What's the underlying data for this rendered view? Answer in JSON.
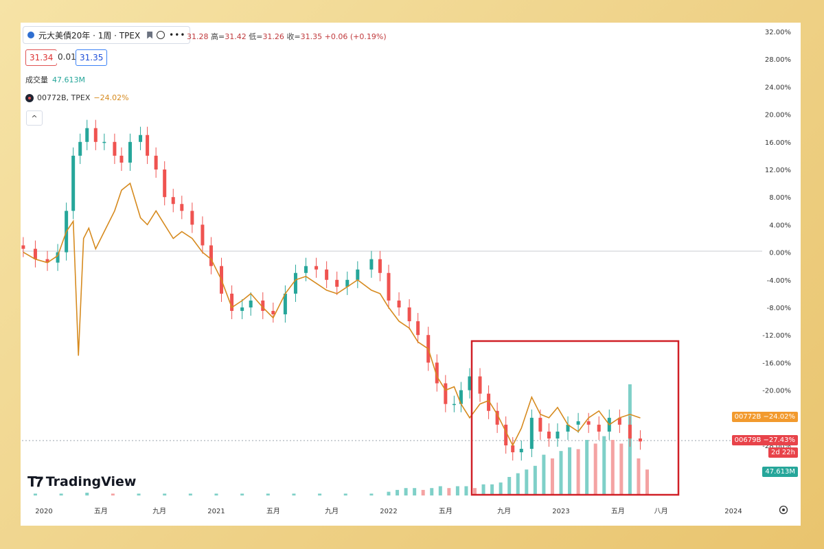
{
  "header": {
    "symbol": "元大美債20年 · 1周 · TPEX",
    "ohlc": [
      {
        "k": "",
        "v": "31.28"
      },
      {
        "k": "高=",
        "v": "31.42"
      },
      {
        "k": "低=",
        "v": "31.26"
      },
      {
        "k": "收=",
        "v": "31.35"
      },
      {
        "k": "",
        "v": "+0.06 (+0.19%)"
      }
    ],
    "bid": "31.34",
    "spread": "0.01",
    "ask": "31.35",
    "volume_label": "成交量",
    "volume_value": "47.613M",
    "compare_symbol": "00772B, TPEX",
    "compare_value": "−24.02%"
  },
  "brand": "TradingView",
  "tags": {
    "compare": "00772B  −24.02%",
    "main": "00679B  −27.43%",
    "countdown": "2d 22h",
    "volume": "47.613M"
  },
  "colors": {
    "up": "#26a69a",
    "down": "#ef5350",
    "compare_line": "#d68a1e",
    "highlight": "#d01f26"
  },
  "chart_data": {
    "type": "line",
    "y_unit": "%",
    "ylim": [
      -32,
      32
    ],
    "yticks": [
      "32.00%",
      "28.00%",
      "24.00%",
      "20.00%",
      "16.00%",
      "12.00%",
      "8.00%",
      "4.00%",
      "0.00%",
      "-4.00%",
      "-8.00%",
      "-12.00%",
      "-16.00%",
      "-20.00%",
      "-24.00%",
      "-28.00%"
    ],
    "xticks": [
      {
        "label": "2020",
        "t": 2020.0
      },
      {
        "label": "五月",
        "t": 2020.33
      },
      {
        "label": "九月",
        "t": 2020.67
      },
      {
        "label": "2021",
        "t": 2021.0
      },
      {
        "label": "五月",
        "t": 2021.33
      },
      {
        "label": "九月",
        "t": 2021.67
      },
      {
        "label": "2022",
        "t": 2022.0
      },
      {
        "label": "五月",
        "t": 2022.33
      },
      {
        "label": "九月",
        "t": 2022.67
      },
      {
        "label": "2023",
        "t": 2023.0
      },
      {
        "label": "五月",
        "t": 2023.33
      },
      {
        "label": "八月",
        "t": 2023.58
      },
      {
        "label": "2024",
        "t": 2024.0
      }
    ],
    "grid": false,
    "series": [
      {
        "name": "00679B",
        "kind": "candles",
        "points": [
          [
            2019.88,
            0.5
          ],
          [
            2019.95,
            -1
          ],
          [
            2020.02,
            -1.5
          ],
          [
            2020.08,
            0
          ],
          [
            2020.13,
            6
          ],
          [
            2020.17,
            14
          ],
          [
            2020.21,
            16
          ],
          [
            2020.25,
            18
          ],
          [
            2020.3,
            16
          ],
          [
            2020.35,
            16
          ],
          [
            2020.41,
            14
          ],
          [
            2020.45,
            13
          ],
          [
            2020.5,
            16
          ],
          [
            2020.56,
            17
          ],
          [
            2020.6,
            14
          ],
          [
            2020.65,
            12
          ],
          [
            2020.7,
            8
          ],
          [
            2020.75,
            7
          ],
          [
            2020.8,
            6
          ],
          [
            2020.86,
            4
          ],
          [
            2020.92,
            1
          ],
          [
            2020.97,
            -2
          ],
          [
            2021.03,
            -6
          ],
          [
            2021.09,
            -8.5
          ],
          [
            2021.15,
            -8
          ],
          [
            2021.2,
            -7
          ],
          [
            2021.27,
            -8.5
          ],
          [
            2021.33,
            -9
          ],
          [
            2021.4,
            -6
          ],
          [
            2021.46,
            -3
          ],
          [
            2021.52,
            -2
          ],
          [
            2021.58,
            -2.5
          ],
          [
            2021.64,
            -4
          ],
          [
            2021.7,
            -5
          ],
          [
            2021.76,
            -4
          ],
          [
            2021.82,
            -2.5
          ],
          [
            2021.9,
            -1
          ],
          [
            2021.95,
            -3
          ],
          [
            2022.0,
            -7
          ],
          [
            2022.06,
            -8
          ],
          [
            2022.12,
            -10
          ],
          [
            2022.17,
            -12
          ],
          [
            2022.23,
            -16
          ],
          [
            2022.28,
            -19
          ],
          [
            2022.33,
            -22
          ],
          [
            2022.38,
            -22
          ],
          [
            2022.42,
            -20
          ],
          [
            2022.47,
            -18
          ],
          [
            2022.53,
            -20.5
          ],
          [
            2022.58,
            -23
          ],
          [
            2022.63,
            -25
          ],
          [
            2022.68,
            -28
          ],
          [
            2022.72,
            -29
          ],
          [
            2022.77,
            -28.5
          ],
          [
            2022.83,
            -24
          ],
          [
            2022.88,
            -26
          ],
          [
            2022.93,
            -27
          ],
          [
            2022.98,
            -26
          ],
          [
            2023.04,
            -25
          ],
          [
            2023.1,
            -24.5
          ],
          [
            2023.16,
            -25
          ],
          [
            2023.22,
            -26
          ],
          [
            2023.28,
            -24
          ],
          [
            2023.34,
            -25
          ],
          [
            2023.4,
            -27
          ],
          [
            2023.46,
            -27.43
          ]
        ]
      },
      {
        "name": "00772B",
        "kind": "line",
        "points": [
          [
            2019.88,
            0
          ],
          [
            2019.95,
            -1
          ],
          [
            2020.02,
            -1.5
          ],
          [
            2020.08,
            -0.5
          ],
          [
            2020.13,
            3
          ],
          [
            2020.17,
            4.5
          ],
          [
            2020.2,
            -15
          ],
          [
            2020.23,
            2
          ],
          [
            2020.26,
            3.5
          ],
          [
            2020.3,
            0.5
          ],
          [
            2020.35,
            3
          ],
          [
            2020.41,
            6
          ],
          [
            2020.45,
            9
          ],
          [
            2020.5,
            10
          ],
          [
            2020.56,
            5
          ],
          [
            2020.6,
            4
          ],
          [
            2020.65,
            6
          ],
          [
            2020.7,
            4
          ],
          [
            2020.75,
            2
          ],
          [
            2020.8,
            3
          ],
          [
            2020.86,
            2
          ],
          [
            2020.92,
            0
          ],
          [
            2020.97,
            -1
          ],
          [
            2021.03,
            -4
          ],
          [
            2021.09,
            -8
          ],
          [
            2021.15,
            -7
          ],
          [
            2021.2,
            -6
          ],
          [
            2021.27,
            -8
          ],
          [
            2021.33,
            -9.5
          ],
          [
            2021.4,
            -6
          ],
          [
            2021.46,
            -4
          ],
          [
            2021.52,
            -3.5
          ],
          [
            2021.58,
            -4.5
          ],
          [
            2021.64,
            -5.5
          ],
          [
            2021.7,
            -6
          ],
          [
            2021.76,
            -5
          ],
          [
            2021.82,
            -4
          ],
          [
            2021.9,
            -5.5
          ],
          [
            2021.95,
            -6
          ],
          [
            2022.0,
            -8
          ],
          [
            2022.06,
            -10
          ],
          [
            2022.12,
            -11
          ],
          [
            2022.17,
            -13
          ],
          [
            2022.23,
            -14
          ],
          [
            2022.28,
            -18
          ],
          [
            2022.33,
            -20
          ],
          [
            2022.38,
            -19.5
          ],
          [
            2022.42,
            -22
          ],
          [
            2022.47,
            -24
          ],
          [
            2022.53,
            -22
          ],
          [
            2022.58,
            -21.5
          ],
          [
            2022.63,
            -23.5
          ],
          [
            2022.68,
            -26
          ],
          [
            2022.72,
            -28
          ],
          [
            2022.77,
            -25.5
          ],
          [
            2022.83,
            -21
          ],
          [
            2022.88,
            -23.5
          ],
          [
            2022.93,
            -24
          ],
          [
            2022.98,
            -22.5
          ],
          [
            2023.04,
            -25
          ],
          [
            2023.1,
            -26
          ],
          [
            2023.16,
            -24
          ],
          [
            2023.22,
            -23
          ],
          [
            2023.28,
            -25
          ],
          [
            2023.34,
            -24
          ],
          [
            2023.4,
            -23.5
          ],
          [
            2023.46,
            -24.02
          ]
        ]
      }
    ],
    "volume": {
      "last": "47.613M",
      "points": [
        [
          2019.95,
          1
        ],
        [
          2020.1,
          1
        ],
        [
          2020.25,
          1.5
        ],
        [
          2020.4,
          1
        ],
        [
          2020.55,
          1
        ],
        [
          2020.7,
          1
        ],
        [
          2020.85,
          1
        ],
        [
          2021.0,
          1
        ],
        [
          2021.15,
          1
        ],
        [
          2021.3,
          1
        ],
        [
          2021.45,
          1
        ],
        [
          2021.6,
          1
        ],
        [
          2021.75,
          1
        ],
        [
          2021.9,
          1
        ],
        [
          2022.0,
          2
        ],
        [
          2022.05,
          3
        ],
        [
          2022.1,
          4
        ],
        [
          2022.15,
          4
        ],
        [
          2022.2,
          3
        ],
        [
          2022.25,
          4
        ],
        [
          2022.3,
          5
        ],
        [
          2022.35,
          4
        ],
        [
          2022.4,
          5
        ],
        [
          2022.45,
          5
        ],
        [
          2022.5,
          4
        ],
        [
          2022.55,
          6
        ],
        [
          2022.6,
          6
        ],
        [
          2022.65,
          7
        ],
        [
          2022.7,
          10
        ],
        [
          2022.75,
          12
        ],
        [
          2022.8,
          14
        ],
        [
          2022.85,
          16
        ],
        [
          2022.9,
          22
        ],
        [
          2022.95,
          20
        ],
        [
          2023.0,
          24
        ],
        [
          2023.05,
          26
        ],
        [
          2023.1,
          25
        ],
        [
          2023.15,
          30
        ],
        [
          2023.2,
          28
        ],
        [
          2023.25,
          32
        ],
        [
          2023.3,
          30
        ],
        [
          2023.35,
          28
        ],
        [
          2023.4,
          60
        ],
        [
          2023.45,
          20
        ],
        [
          2023.5,
          14
        ]
      ]
    }
  }
}
